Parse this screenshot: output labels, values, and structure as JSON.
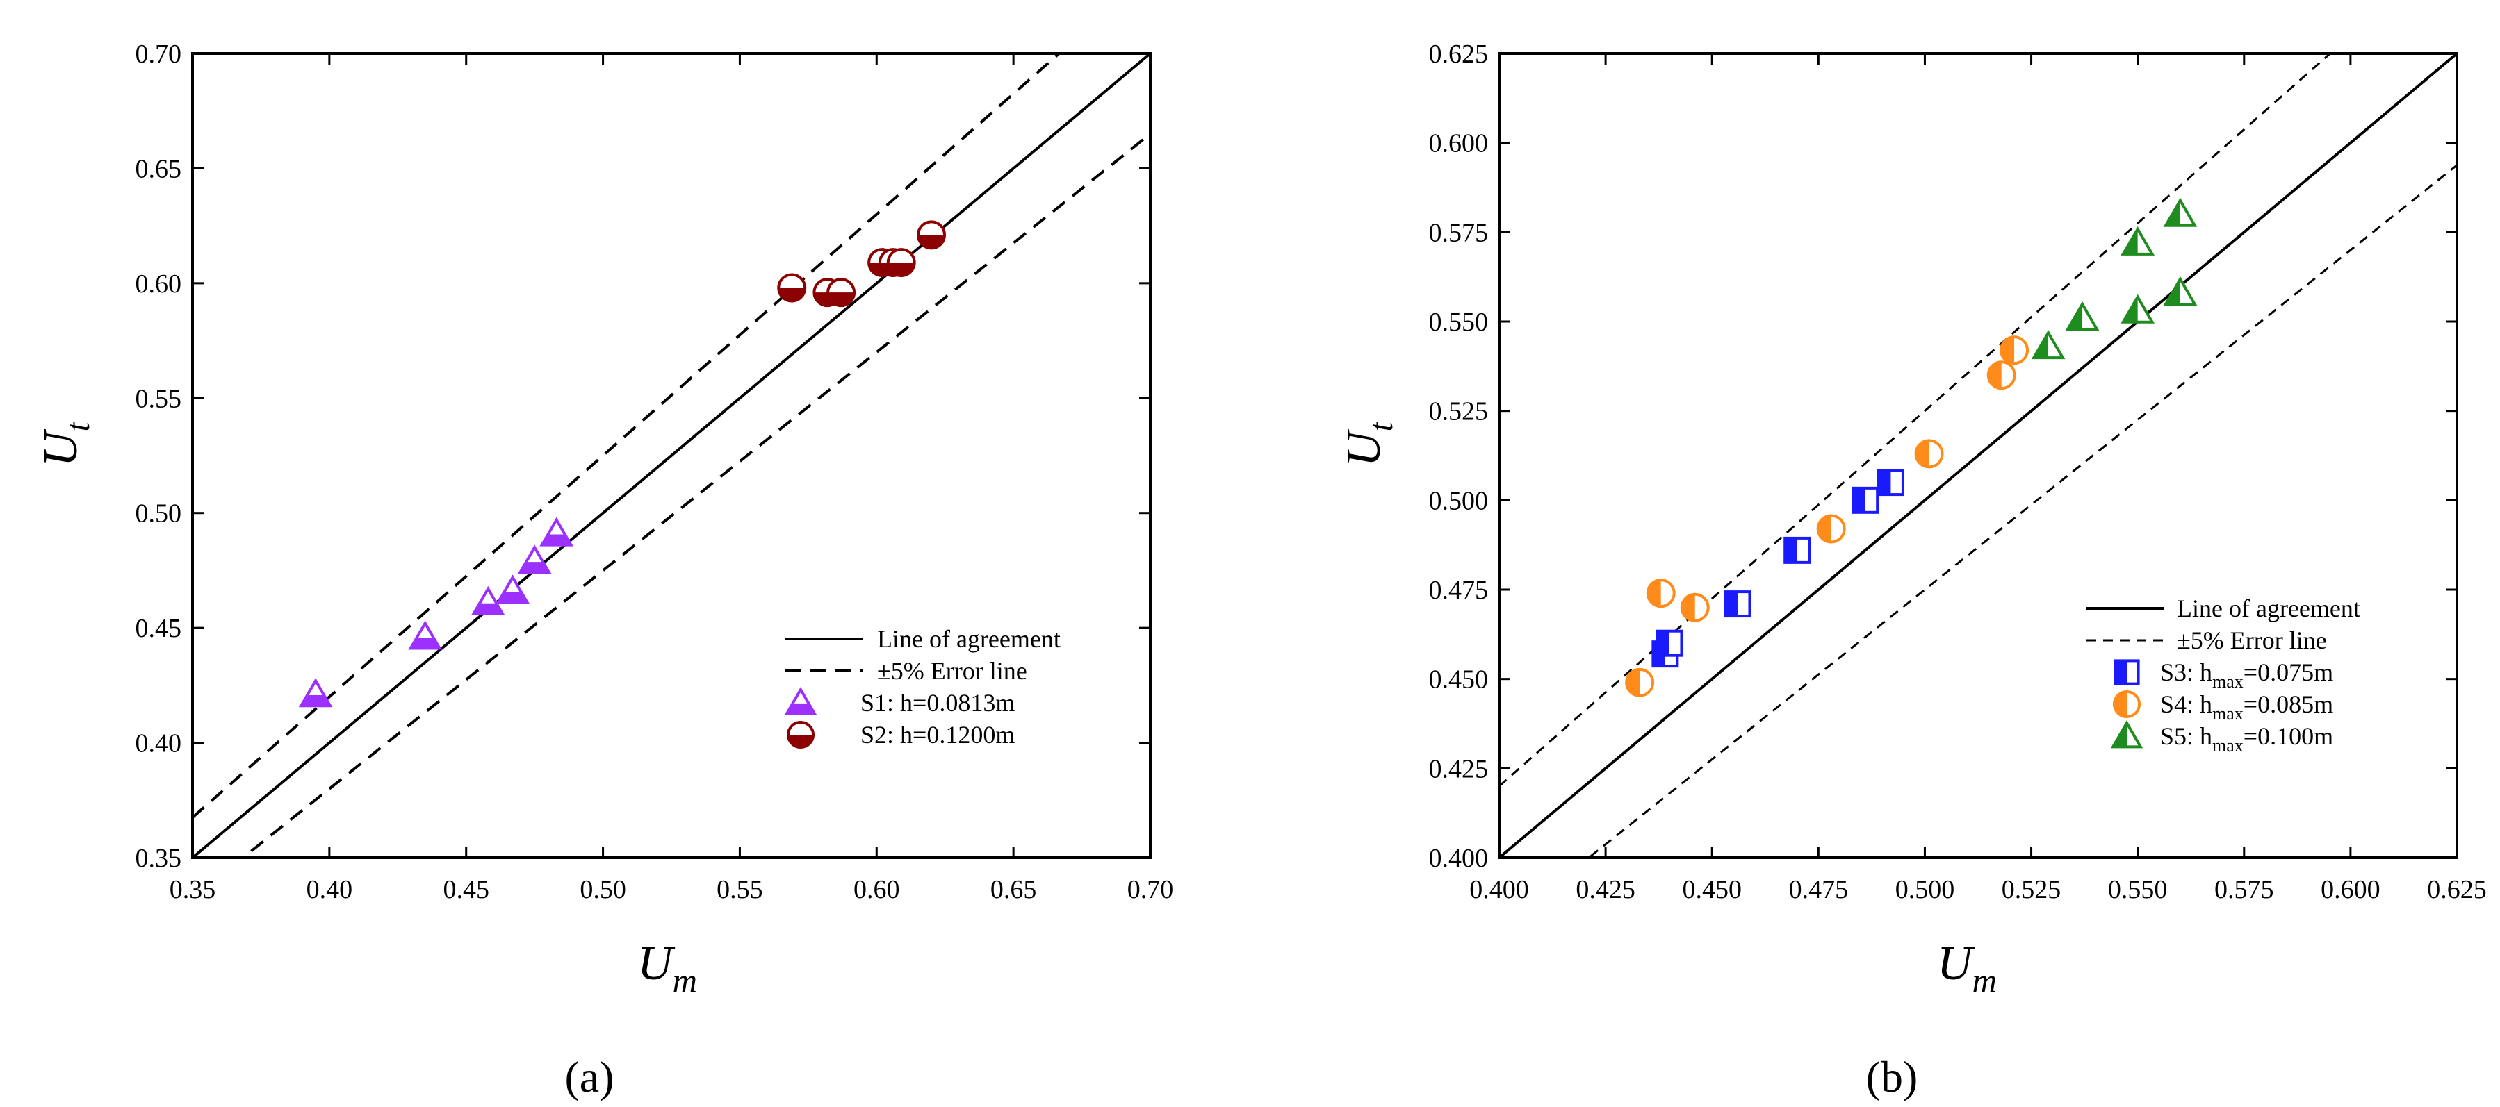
{
  "figure": {
    "panel_labels": [
      "(a)",
      "(b)"
    ]
  },
  "chart_data": [
    {
      "type": "scatter",
      "panel": "a",
      "title": "",
      "xlabel": "U_m",
      "ylabel": "U_t",
      "xlim": [
        0.35,
        0.7
      ],
      "ylim": [
        0.35,
        0.7
      ],
      "xticks": [
        0.35,
        0.4,
        0.45,
        0.5,
        0.55,
        0.6,
        0.65,
        0.7
      ],
      "yticks": [
        0.35,
        0.4,
        0.45,
        0.5,
        0.55,
        0.6,
        0.65,
        0.7
      ],
      "tick_format": 2,
      "grid": false,
      "legend_position": "lower-right",
      "legend": [
        {
          "kind": "solid-line",
          "label": "Line of agreement"
        },
        {
          "kind": "dashed-line",
          "label": "±5% Error line"
        },
        {
          "kind": "marker",
          "series": 0,
          "label": "S1: h=0.0813m"
        },
        {
          "kind": "marker",
          "series": 1,
          "label": "S2: h=0.1200m"
        }
      ],
      "reference_lines": {
        "agreement_slope": 1.0,
        "error_fraction": 0.05
      },
      "series": [
        {
          "name": "S1: h=0.0813m",
          "marker": "triangle-half-bottom",
          "color": "#9b30ff",
          "points": [
            [
              0.395,
              0.421
            ],
            [
              0.435,
              0.446
            ],
            [
              0.458,
              0.461
            ],
            [
              0.467,
              0.466
            ],
            [
              0.475,
              0.479
            ],
            [
              0.483,
              0.491
            ]
          ]
        },
        {
          "name": "S2: h=0.1200m",
          "marker": "circle-half-bottom",
          "color": "#8b0000",
          "points": [
            [
              0.569,
              0.598
            ],
            [
              0.582,
              0.596
            ],
            [
              0.587,
              0.596
            ],
            [
              0.602,
              0.609
            ],
            [
              0.606,
              0.609
            ],
            [
              0.609,
              0.609
            ],
            [
              0.62,
              0.621
            ]
          ]
        }
      ]
    },
    {
      "type": "scatter",
      "panel": "b",
      "title": "",
      "xlabel": "U_m",
      "ylabel": "U_t",
      "xlim": [
        0.4,
        0.625
      ],
      "ylim": [
        0.4,
        0.625
      ],
      "xticks": [
        0.4,
        0.425,
        0.45,
        0.475,
        0.5,
        0.525,
        0.55,
        0.575,
        0.6,
        0.625
      ],
      "yticks": [
        0.4,
        0.425,
        0.45,
        0.475,
        0.5,
        0.525,
        0.55,
        0.575,
        0.6,
        0.625
      ],
      "tick_format": 3,
      "grid": false,
      "legend_position": "lower-right",
      "legend": [
        {
          "kind": "solid-line",
          "label": "Line of agreement"
        },
        {
          "kind": "dashed-line",
          "label": "±5% Error line"
        },
        {
          "kind": "marker",
          "series": 0,
          "label": "S3: h",
          "sub": "max",
          "tail": "=0.075m"
        },
        {
          "kind": "marker",
          "series": 1,
          "label": "S4: h",
          "sub": "max",
          "tail": "=0.085m"
        },
        {
          "kind": "marker",
          "series": 2,
          "label": "S5: h",
          "sub": "max",
          "tail": "=0.100m"
        }
      ],
      "reference_lines": {
        "agreement_slope": 1.0,
        "error_fraction": 0.05
      },
      "series": [
        {
          "name": "S3: hmax=0.075m",
          "marker": "square-half-left",
          "color": "#1a1aff",
          "points": [
            [
              0.439,
              0.457
            ],
            [
              0.44,
              0.46
            ],
            [
              0.456,
              0.471
            ],
            [
              0.47,
              0.486
            ],
            [
              0.486,
              0.5
            ],
            [
              0.492,
              0.505
            ]
          ]
        },
        {
          "name": "S4: hmax=0.085m",
          "marker": "circle-half-left",
          "color": "#ff8c1a",
          "points": [
            [
              0.433,
              0.449
            ],
            [
              0.438,
              0.474
            ],
            [
              0.446,
              0.47
            ],
            [
              0.478,
              0.492
            ],
            [
              0.501,
              0.513
            ],
            [
              0.518,
              0.535
            ],
            [
              0.521,
              0.542
            ]
          ]
        },
        {
          "name": "S5: hmax=0.100m",
          "marker": "triangle-half-left",
          "color": "#1e8c1e",
          "points": [
            [
              0.529,
              0.543
            ],
            [
              0.537,
              0.551
            ],
            [
              0.55,
              0.572
            ],
            [
              0.55,
              0.553
            ],
            [
              0.56,
              0.58
            ],
            [
              0.56,
              0.558
            ]
          ]
        }
      ]
    }
  ]
}
